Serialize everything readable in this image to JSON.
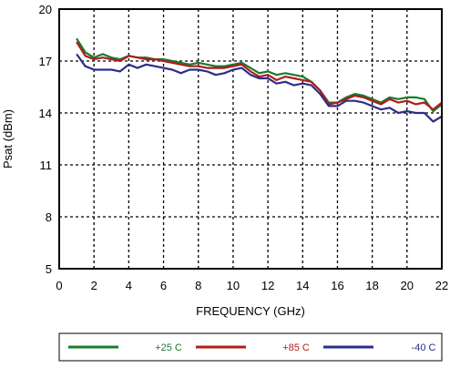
{
  "chart_data": {
    "type": "line",
    "xlabel": "FREQUENCY (GHz)",
    "ylabel": "Psat (dBm)",
    "xlim": [
      0,
      22
    ],
    "ylim": [
      5,
      20
    ],
    "xticks": [
      0,
      2,
      4,
      6,
      8,
      10,
      12,
      14,
      16,
      18,
      20,
      22
    ],
    "yticks": [
      5,
      8,
      11,
      14,
      17,
      20
    ],
    "grid": true,
    "legend_position": "bottom",
    "series": [
      {
        "name": "+25 C",
        "color": "#1a7a2e",
        "x": [
          1,
          1.5,
          2,
          2.5,
          3,
          3.5,
          4,
          4.5,
          5,
          5.5,
          6,
          6.5,
          7,
          7.5,
          8,
          8.5,
          9,
          9.5,
          10,
          10.5,
          11,
          11.5,
          12,
          12.5,
          13,
          13.5,
          14,
          14.5,
          15,
          15.5,
          16,
          16.5,
          17,
          17.5,
          18,
          18.5,
          19,
          19.5,
          20,
          20.5,
          21,
          21.5,
          22
        ],
        "y": [
          18.3,
          17.5,
          17.2,
          17.4,
          17.2,
          17.1,
          17.3,
          17.2,
          17.2,
          17.1,
          17.1,
          17.0,
          16.9,
          16.8,
          16.9,
          16.8,
          16.7,
          16.7,
          16.8,
          16.9,
          16.6,
          16.3,
          16.4,
          16.2,
          16.3,
          16.2,
          16.1,
          15.8,
          15.3,
          14.6,
          14.6,
          14.9,
          15.1,
          15.0,
          14.8,
          14.6,
          14.9,
          14.8,
          14.9,
          14.9,
          14.8,
          14.1,
          14.5
        ]
      },
      {
        "name": "+85 C",
        "color": "#b01c1c",
        "x": [
          1,
          1.5,
          2,
          2.5,
          3,
          3.5,
          4,
          4.5,
          5,
          5.5,
          6,
          6.5,
          7,
          7.5,
          8,
          8.5,
          9,
          9.5,
          10,
          10.5,
          11,
          11.5,
          12,
          12.5,
          13,
          13.5,
          14,
          14.5,
          15,
          15.5,
          16,
          16.5,
          17,
          17.5,
          18,
          18.5,
          19,
          19.5,
          20,
          20.5,
          21,
          21.5,
          22
        ],
        "y": [
          18.1,
          17.3,
          17.1,
          17.2,
          17.1,
          17.0,
          17.3,
          17.2,
          17.1,
          17.1,
          17.0,
          16.9,
          16.8,
          16.7,
          16.7,
          16.6,
          16.6,
          16.6,
          16.7,
          16.8,
          16.4,
          16.1,
          16.2,
          15.9,
          16.1,
          16.0,
          15.9,
          15.8,
          15.3,
          14.5,
          14.6,
          14.8,
          15.0,
          14.9,
          14.7,
          14.5,
          14.8,
          14.6,
          14.7,
          14.5,
          14.6,
          14.2,
          14.6
        ]
      },
      {
        "name": "-40 C",
        "color": "#2b2d8a",
        "x": [
          1,
          1.5,
          2,
          2.5,
          3,
          3.5,
          4,
          4.5,
          5,
          5.5,
          6,
          6.5,
          7,
          7.5,
          8,
          8.5,
          9,
          9.5,
          10,
          10.5,
          11,
          11.5,
          12,
          12.5,
          13,
          13.5,
          14,
          14.5,
          15,
          15.5,
          16,
          16.5,
          17,
          17.5,
          18,
          18.5,
          19,
          19.5,
          20,
          20.5,
          21,
          21.5,
          22
        ],
        "y": [
          17.4,
          16.7,
          16.5,
          16.5,
          16.5,
          16.4,
          16.8,
          16.6,
          16.8,
          16.7,
          16.6,
          16.5,
          16.3,
          16.5,
          16.5,
          16.4,
          16.2,
          16.3,
          16.5,
          16.6,
          16.2,
          16.0,
          16.0,
          15.7,
          15.8,
          15.6,
          15.7,
          15.6,
          15.1,
          14.4,
          14.4,
          14.7,
          14.7,
          14.6,
          14.4,
          14.2,
          14.3,
          14.0,
          14.1,
          14.0,
          14.0,
          13.5,
          13.8
        ]
      }
    ]
  }
}
